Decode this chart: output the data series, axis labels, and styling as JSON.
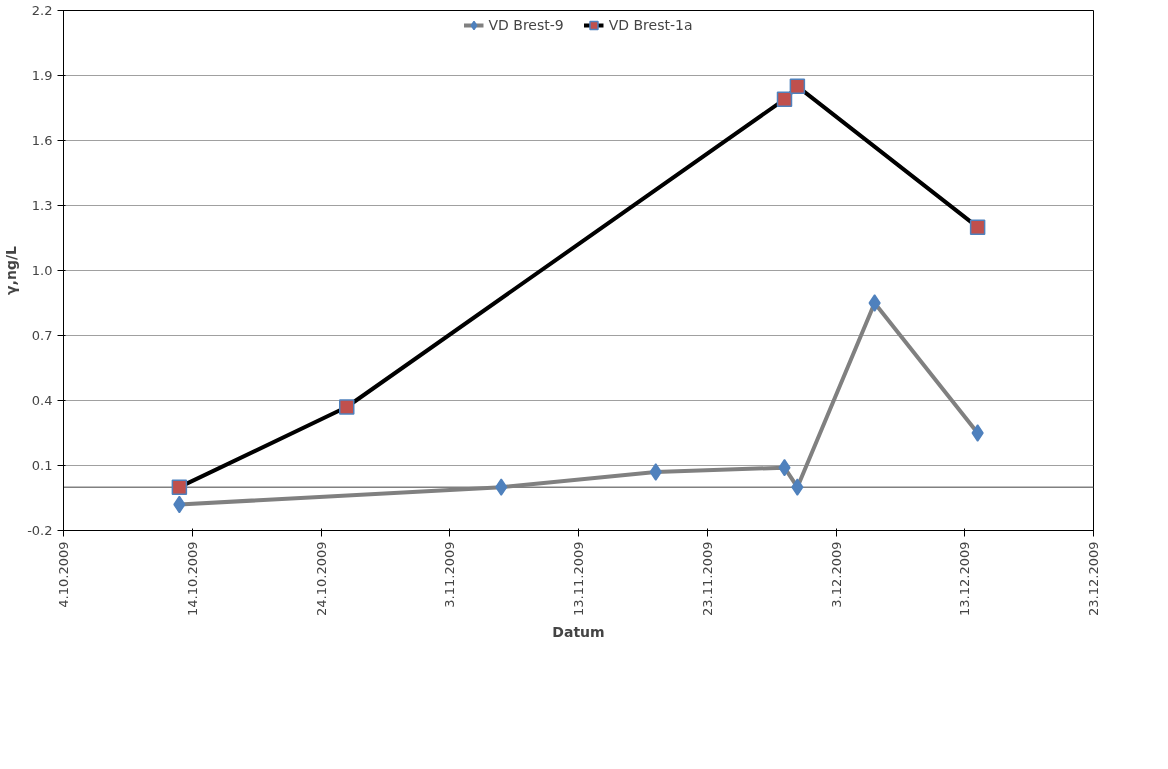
{
  "chart_data": {
    "type": "line",
    "xlabel": "Datum",
    "ylabel": "γ,ng/L",
    "xlim": [
      "2009-10-04",
      "2009-12-23"
    ],
    "xticks": [
      {
        "value": "2009-10-04",
        "label": "4.10.2009"
      },
      {
        "value": "2009-10-14",
        "label": "14.10.2009"
      },
      {
        "value": "2009-10-24",
        "label": "24.10.2009"
      },
      {
        "value": "2009-11-03",
        "label": "3.11.2009"
      },
      {
        "value": "2009-11-13",
        "label": "13.11.2009"
      },
      {
        "value": "2009-11-23",
        "label": "23.11.2009"
      },
      {
        "value": "2009-12-03",
        "label": "3.12.2009"
      },
      {
        "value": "2009-12-13",
        "label": "13.12.2009"
      },
      {
        "value": "2009-12-23",
        "label": "23.12.2009"
      }
    ],
    "ylim": [
      -0.2,
      2.2
    ],
    "yticks": [
      -0.2,
      0.1,
      0.4,
      0.7,
      {
        "value": 1.0,
        "label": "1.0"
      },
      1.3,
      1.6,
      1.9,
      2.2
    ],
    "grid": "y",
    "legend": "top",
    "ref_lines": [
      {
        "axis": "y",
        "value": 0,
        "color": "#808080"
      }
    ],
    "series": [
      {
        "name": "VD Brest-9",
        "color": "#808080",
        "marker": "diamond",
        "colors": [
          "#4f81bd",
          "#4f81bd",
          "#4f81bd",
          "#4f81bd",
          "#4f81bd",
          "#4f81bd",
          "#4f81bd"
        ],
        "x": [
          "2009-10-13",
          "2009-11-07",
          "2009-11-19",
          "2009-11-29",
          "2009-11-30",
          "2009-12-06",
          "2009-12-14"
        ],
        "values": [
          -0.08,
          0.0,
          0.07,
          0.09,
          0.0,
          0.85,
          0.25
        ]
      },
      {
        "name": "VD Brest-1a",
        "color": "#000000",
        "marker": "square",
        "colors": [
          "#c0504d",
          "#c0504d",
          "#c0504d",
          "#c0504d",
          "#c0504d"
        ],
        "x": [
          "2009-10-13",
          "2009-10-26",
          "2009-11-29",
          "2009-11-30",
          "2009-12-14"
        ],
        "values": [
          0.0,
          0.37,
          1.79,
          1.85,
          1.2
        ]
      }
    ]
  }
}
